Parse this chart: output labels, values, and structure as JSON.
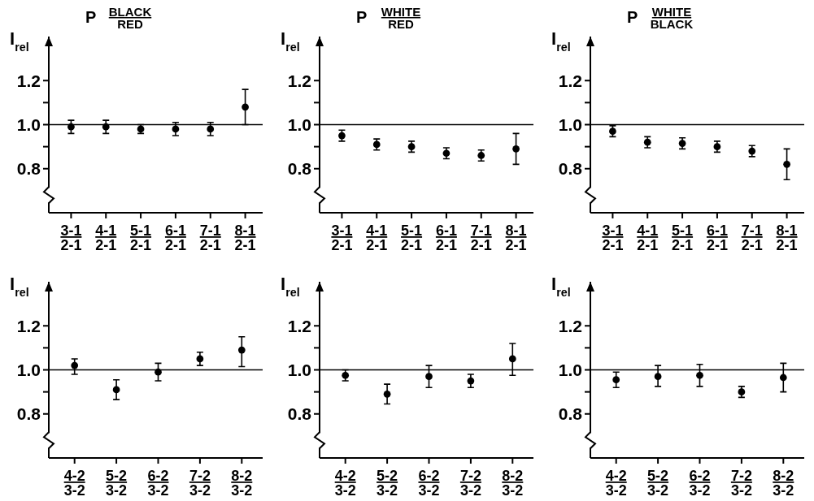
{
  "chart_data": [
    {
      "type": "scatter",
      "title": "P BLACK\nRED",
      "ylabel": "I$_{rel}$",
      "categories": [
        "3-1\n2-1",
        "4-1\n2-1",
        "5-1\n2-1",
        "6-1\n2-1",
        "7-1\n2-1",
        "8-1\n2-1"
      ],
      "ylim": [
        0.6,
        1.4
      ],
      "yticks": [
        {
          "value": 0.8,
          "label": "0.8"
        },
        {
          "value": 0.9,
          "label": null
        },
        {
          "value": 1.0,
          "label": "1.0"
        },
        {
          "value": 1.1,
          "label": null
        },
        {
          "value": 1.2,
          "label": "1.2"
        }
      ],
      "marker": "circle",
      "ref_lines": [
        {
          "axis": "y",
          "value": 1.0
        }
      ],
      "series": [
        {
          "color": "#000000",
          "values": [
            0.99,
            0.99,
            0.98,
            0.98,
            0.98,
            1.08
          ],
          "errors": [
            0.03,
            0.03,
            0.02,
            0.03,
            0.03,
            [
              1.0,
              1.16
            ]
          ]
        }
      ]
    },
    {
      "type": "scatter",
      "title": "P WHITE\nRED",
      "ylabel": "I$_{rel}$",
      "categories": [
        "3-1\n2-1",
        "4-1\n2-1",
        "5-1\n2-1",
        "6-1\n2-1",
        "7-1\n2-1",
        "8-1\n2-1"
      ],
      "ylim": [
        0.6,
        1.4
      ],
      "yticks": [
        {
          "value": 0.8,
          "label": "0.8"
        },
        {
          "value": 0.9,
          "label": null
        },
        {
          "value": 1.0,
          "label": "1.0"
        },
        {
          "value": 1.1,
          "label": null
        },
        {
          "value": 1.2,
          "label": "1.2"
        }
      ],
      "marker": "circle",
      "ref_lines": [
        {
          "axis": "y",
          "value": 1.0
        }
      ],
      "series": [
        {
          "color": "#000000",
          "values": [
            0.95,
            0.91,
            0.9,
            0.87,
            0.86,
            0.89
          ],
          "errors": [
            0.025,
            0.025,
            0.025,
            0.025,
            0.025,
            [
              0.82,
              0.96
            ]
          ]
        }
      ]
    },
    {
      "type": "scatter",
      "title": "P WHITE\nBLACK",
      "ylabel": "I$_{rel}$",
      "categories": [
        "3-1\n2-1",
        "4-1\n2-1",
        "5-1\n2-1",
        "6-1\n2-1",
        "7-1\n2-1",
        "8-1\n2-1"
      ],
      "ylim": [
        0.6,
        1.4
      ],
      "yticks": [
        {
          "value": 0.8,
          "label": "0.8"
        },
        {
          "value": 0.9,
          "label": null
        },
        {
          "value": 1.0,
          "label": "1.0"
        },
        {
          "value": 1.1,
          "label": null
        },
        {
          "value": 1.2,
          "label": "1.2"
        }
      ],
      "marker": "circle",
      "ref_lines": [
        {
          "axis": "y",
          "value": 1.0
        }
      ],
      "series": [
        {
          "color": "#000000",
          "values": [
            0.97,
            0.92,
            0.915,
            0.9,
            0.88,
            0.82
          ],
          "errors": [
            0.025,
            0.025,
            0.025,
            0.025,
            0.025,
            [
              0.75,
              0.89
            ]
          ]
        }
      ]
    },
    {
      "type": "scatter",
      "ylabel": "I$_{rel}$",
      "categories": [
        "4-2\n3-2",
        "5-2\n3-2",
        "6-2\n3-2",
        "7-2\n3-2",
        "8-2\n3-2"
      ],
      "ylim": [
        0.6,
        1.4
      ],
      "yticks": [
        {
          "value": 0.8,
          "label": "0.8"
        },
        {
          "value": 0.9,
          "label": null
        },
        {
          "value": 1.0,
          "label": "1.0"
        },
        {
          "value": 1.1,
          "label": null
        },
        {
          "value": 1.2,
          "label": "1.2"
        }
      ],
      "marker": "circle",
      "ref_lines": [
        {
          "axis": "y",
          "value": 1.0
        }
      ],
      "series": [
        {
          "color": "#000000",
          "values": [
            1.02,
            0.91,
            0.99,
            1.05,
            1.09
          ],
          "errors": [
            [
              0.98,
              1.05
            ],
            0.045,
            0.04,
            0.03,
            [
              1.015,
              1.15
            ]
          ]
        }
      ]
    },
    {
      "type": "scatter",
      "ylabel": "I$_{rel}$",
      "categories": [
        "4-2\n3-2",
        "5-2\n3-2",
        "6-2\n3-2",
        "7-2\n3-2",
        "8-2\n3-2"
      ],
      "ylim": [
        0.6,
        1.4
      ],
      "yticks": [
        {
          "value": 0.8,
          "label": "0.8"
        },
        {
          "value": 0.9,
          "label": null
        },
        {
          "value": 1.0,
          "label": "1.0"
        },
        {
          "value": 1.1,
          "label": null
        },
        {
          "value": 1.2,
          "label": "1.2"
        }
      ],
      "marker": "circle",
      "ref_lines": [
        {
          "axis": "y",
          "value": 1.0
        }
      ],
      "series": [
        {
          "color": "#000000",
          "values": [
            0.975,
            0.89,
            0.97,
            0.95,
            1.05
          ],
          "errors": [
            [
              0.95,
              1.0
            ],
            0.045,
            0.05,
            0.03,
            [
              0.975,
              1.12
            ]
          ]
        }
      ]
    },
    {
      "type": "scatter",
      "ylabel": "I$_{rel}$",
      "categories": [
        "4-2\n3-2",
        "5-2\n3-2",
        "6-2\n3-2",
        "7-2\n3-2",
        "8-2\n3-2"
      ],
      "ylim": [
        0.6,
        1.4
      ],
      "yticks": [
        {
          "value": 0.8,
          "label": "0.8"
        },
        {
          "value": 0.9,
          "label": null
        },
        {
          "value": 1.0,
          "label": "1.0"
        },
        {
          "value": 1.1,
          "label": null
        },
        {
          "value": 1.2,
          "label": "1.2"
        }
      ],
      "marker": "circle",
      "ref_lines": [
        {
          "axis": "y",
          "value": 1.0
        }
      ],
      "series": [
        {
          "color": "#000000",
          "values": [
            0.955,
            0.97,
            0.975,
            0.9,
            0.965
          ],
          "errors": [
            0.035,
            [
              0.925,
              1.02
            ],
            0.05,
            0.025,
            [
              0.9,
              1.03
            ]
          ]
        }
      ]
    }
  ]
}
